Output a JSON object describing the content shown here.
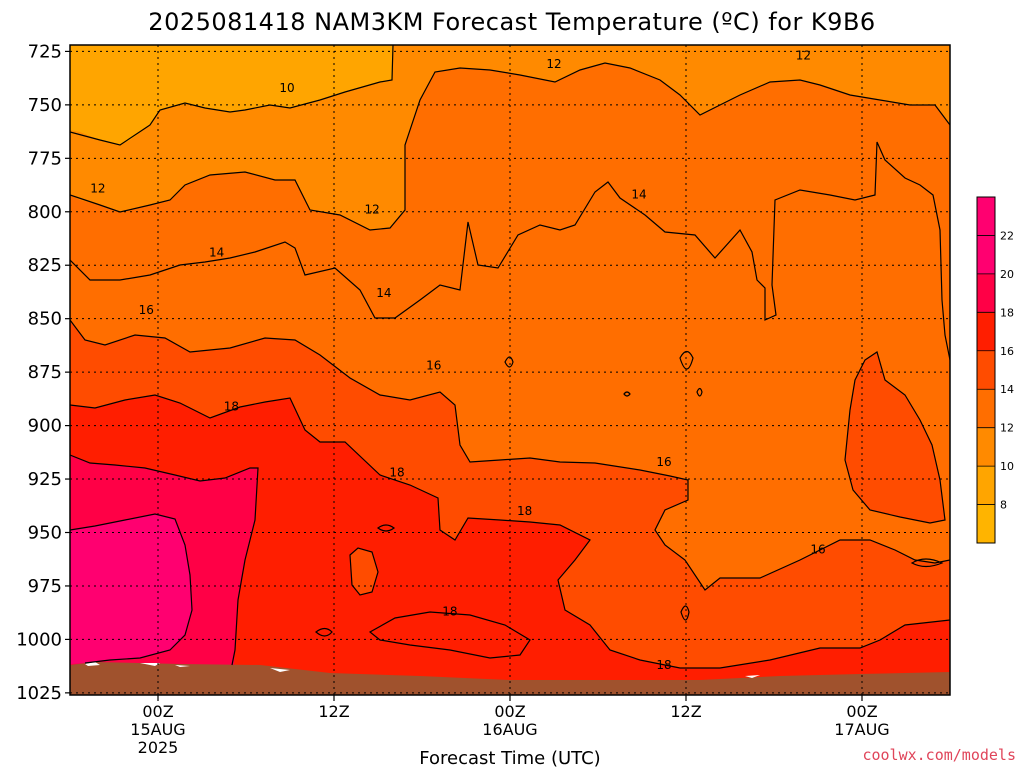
{
  "title": "2025081418 NAM3KM Forecast Temperature (ºC) for K9B6",
  "watermark": "coolwx.com/models",
  "colors": {
    "band_8": "#ffb400",
    "band_10": "#ffa500",
    "band_12": "#ff8a00",
    "band_14": "#ff6e00",
    "band_16": "#ff4c00",
    "band_18": "#ff1e00",
    "band_20": "#ff0046",
    "band_22": "#ff0070",
    "ground": "#a0522d",
    "contour": "#000000",
    "grid": "#000000",
    "watermark": "#e0455a"
  },
  "chart_data": {
    "type": "heatmap",
    "title": "2025081418 NAM3KM Forecast Temperature (ºC) for K9B6",
    "xlabel": "Forecast Time (UTC)",
    "ylabel": "",
    "x_ticks": [
      {
        "hour": 6,
        "lines": [
          "00Z",
          "15AUG",
          "2025"
        ]
      },
      {
        "hour": 18,
        "lines": [
          "12Z"
        ]
      },
      {
        "hour": 30,
        "lines": [
          "00Z",
          "16AUG"
        ]
      },
      {
        "hour": 42,
        "lines": [
          "12Z"
        ]
      },
      {
        "hour": 54,
        "lines": [
          "00Z",
          "17AUG"
        ]
      }
    ],
    "xlim": [
      0,
      60
    ],
    "y_ticks": [
      725,
      750,
      775,
      800,
      825,
      850,
      875,
      900,
      925,
      950,
      975,
      1000,
      1025
    ],
    "ylim": [
      1026,
      722
    ],
    "colorbar": {
      "levels": [
        6,
        8,
        10,
        12,
        14,
        16,
        18,
        20,
        22,
        24
      ],
      "tick_labels": [
        "8",
        "10",
        "12",
        "14",
        "16",
        "18",
        "20",
        "22"
      ]
    },
    "contour_labels": [
      {
        "text": "10",
        "hour": 14.8,
        "hpa": 742
      },
      {
        "text": "12",
        "hour": 33,
        "hpa": 731
      },
      {
        "text": "12",
        "hour": 50,
        "hpa": 727
      },
      {
        "text": "12",
        "hour": 1.9,
        "hpa": 789
      },
      {
        "text": "12",
        "hour": 20.6,
        "hpa": 799
      },
      {
        "text": "14",
        "hour": 10,
        "hpa": 819
      },
      {
        "text": "14",
        "hour": 21.4,
        "hpa": 838
      },
      {
        "text": "14",
        "hour": 38.8,
        "hpa": 792
      },
      {
        "text": "16",
        "hour": 5.2,
        "hpa": 846
      },
      {
        "text": "16",
        "hour": 24.8,
        "hpa": 872
      },
      {
        "text": "16",
        "hour": 40.5,
        "hpa": 917
      },
      {
        "text": "16",
        "hour": 51,
        "hpa": 958
      },
      {
        "text": "18",
        "hour": 11,
        "hpa": 891
      },
      {
        "text": "18",
        "hour": 22.3,
        "hpa": 922
      },
      {
        "text": "18",
        "hour": 31,
        "hpa": 940
      },
      {
        "text": "18",
        "hour": 25.9,
        "hpa": 987
      },
      {
        "text": "18",
        "hour": 40.5,
        "hpa": 1012
      }
    ],
    "grid": true,
    "legend": "colorbar-right"
  }
}
